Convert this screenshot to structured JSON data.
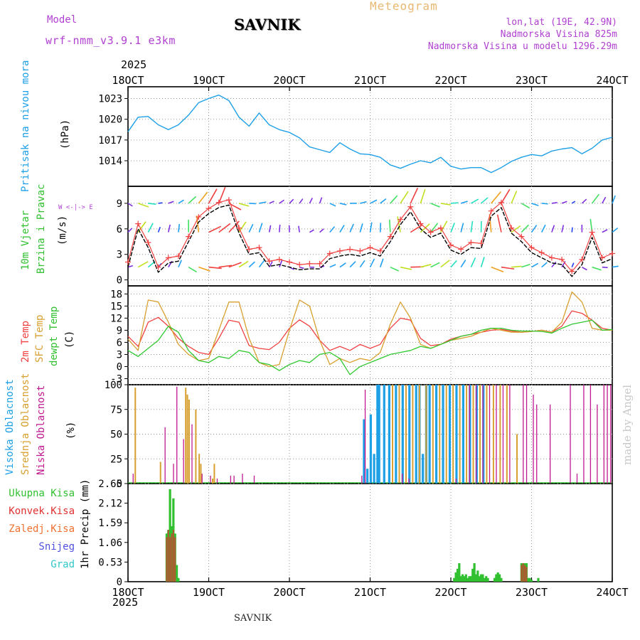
{
  "header": {
    "model_label": "Model",
    "model_value": "wrf-nmm_v3.9.1 e3km",
    "station": "SAVNIK",
    "meteogram_title": "Meteogram",
    "lonlat": "lon,lat (19E, 42.9N)",
    "altitude": "Nadmorska Visina 825m",
    "model_altitude": "Nadmorska Visina u modelu 1296.29m",
    "footer_station": "SAVNIK",
    "credit": "made by Angel"
  },
  "time_axis": {
    "year": "2025",
    "labels": [
      "18OCT",
      "19OCT",
      "20OCT",
      "21OCT",
      "22OCT",
      "23OCT",
      "24OCT"
    ]
  },
  "colors": {
    "pressure": "#1ea0e6",
    "temp2m": "#f04040",
    "sfc": "#d8a030",
    "dewpt": "#30c830",
    "high_cloud": "#1ea0e6",
    "mid_cloud": "#d8a030",
    "low_cloud": "#c01890",
    "rain": "#30c030",
    "conv": "#e03030",
    "snow": "#5050e0",
    "grad": "#30c8c8",
    "credit": "#c8c8c8"
  },
  "panels": {
    "pressure": {
      "label": "Pritisak na nivou mora",
      "unit": "(hPa)"
    },
    "wind": {
      "label1": "10m Vjetar",
      "label2": "Brzina i Pravac",
      "unit": "(m/s)",
      "compass": "W <-|-> E"
    },
    "temp": {
      "label1": "2m Temp",
      "label2": "SFC Temp",
      "label3": "dewpt Temp",
      "unit": "(C)"
    },
    "cloud": {
      "label1": "Visoka Oblacnost",
      "label2": "Srednja Oblacnost",
      "label3": "Niska Oblacnost",
      "unit": "(%)"
    },
    "precip": {
      "labels": [
        "Ukupna Kisa",
        "Konvek.Kisa",
        "Zaledj.Kisa",
        "Snijeg",
        "Grad"
      ],
      "unit": "1hr Precip (mm)"
    }
  },
  "chart_data": [
    {
      "type": "line",
      "title": "Pritisak na nivou mora",
      "ylabel": "(hPa)",
      "ylim": [
        1010.3,
        1024.7
      ],
      "yticks": [
        "1014",
        "1017",
        "1020",
        "1023"
      ],
      "x_hours": [
        0,
        3,
        6,
        9,
        12,
        15,
        18,
        21,
        24,
        27,
        30,
        33,
        36,
        39,
        42,
        45,
        48,
        51,
        54,
        57,
        60,
        63,
        66,
        69,
        72,
        75,
        78,
        81,
        84,
        87,
        90,
        93,
        96,
        99,
        102,
        105,
        108,
        111,
        114,
        117,
        120,
        123,
        126,
        129,
        132,
        135,
        138,
        141,
        144
      ],
      "series": [
        {
          "name": "Pritisak",
          "values": [
            1018.2,
            1020.3,
            1020.4,
            1019.2,
            1018.5,
            1019.2,
            1020.6,
            1022.4,
            1023.0,
            1023.5,
            1022.7,
            1020.3,
            1019.0,
            1020.9,
            1019.2,
            1018.5,
            1018.1,
            1017.3,
            1016.0,
            1015.6,
            1015.2,
            1016.6,
            1015.7,
            1015.0,
            1014.9,
            1014.5,
            1013.4,
            1012.9,
            1013.5,
            1014.0,
            1013.7,
            1014.5,
            1013.2,
            1012.8,
            1013.0,
            1013.0,
            1012.3,
            1013.0,
            1013.9,
            1014.5,
            1014.9,
            1014.7,
            1015.4,
            1015.7,
            1015.9,
            1015.0,
            1015.8,
            1017.0,
            1017.4
          ]
        }
      ]
    },
    {
      "type": "line",
      "title": "10m Vjetar Brzina i Pravac",
      "ylabel": "(m/s)",
      "ylim": [
        -0.7,
        11
      ],
      "yticks": [
        "0",
        "3",
        "6",
        "9"
      ],
      "x_hours": [
        0,
        3,
        6,
        9,
        12,
        15,
        18,
        21,
        24,
        27,
        30,
        33,
        36,
        39,
        42,
        45,
        48,
        51,
        54,
        57,
        60,
        63,
        66,
        69,
        72,
        75,
        78,
        81,
        84,
        87,
        90,
        93,
        96,
        99,
        102,
        105,
        108,
        111,
        114,
        117,
        120,
        123,
        126,
        129,
        132,
        135,
        138,
        141,
        144
      ],
      "series": [
        {
          "name": "Brzina vjetra",
          "values": [
            1.5,
            6.0,
            3.8,
            0.9,
            2.0,
            2.2,
            4.5,
            6.8,
            7.8,
            8.5,
            8.8,
            5.5,
            3.0,
            3.2,
            1.6,
            1.8,
            1.5,
            1.2,
            1.3,
            1.3,
            2.5,
            2.8,
            3.0,
            2.8,
            3.2,
            2.8,
            4.5,
            6.5,
            8.0,
            6.0,
            5.0,
            5.5,
            3.5,
            3.0,
            3.8,
            3.7,
            7.5,
            8.5,
            5.5,
            4.5,
            3.2,
            2.6,
            2.0,
            1.8,
            0.4,
            1.8,
            5.0,
            2.0,
            2.5
          ]
        }
      ]
    },
    {
      "type": "line",
      "title": "Temperature",
      "ylabel": "(C)",
      "ylim": [
        -4.5,
        20
      ],
      "yticks": [
        "-3",
        "0",
        "3",
        "6",
        "9",
        "12",
        "15",
        "18"
      ],
      "x_hours": [
        0,
        3,
        6,
        9,
        12,
        15,
        18,
        21,
        24,
        27,
        30,
        33,
        36,
        39,
        42,
        45,
        48,
        51,
        54,
        57,
        60,
        63,
        66,
        69,
        72,
        75,
        78,
        81,
        84,
        87,
        90,
        93,
        96,
        99,
        102,
        105,
        108,
        111,
        114,
        117,
        120,
        123,
        126,
        129,
        132,
        135,
        138,
        141,
        144
      ],
      "series": [
        {
          "name": "2m Temp",
          "values": [
            7.5,
            5.0,
            11.0,
            12.2,
            10.0,
            7.0,
            5.0,
            3.5,
            3.0,
            7.0,
            11.5,
            11.0,
            5.2,
            4.5,
            4.2,
            6.0,
            9.5,
            11.6,
            10.0,
            6.5,
            4.0,
            5.0,
            4.0,
            5.5,
            4.5,
            5.5,
            9.5,
            12.0,
            11.5,
            7.0,
            5.2,
            5.5,
            6.8,
            7.5,
            8.0,
            8.5,
            9.0,
            9.2,
            8.8,
            8.5,
            8.7,
            9.0,
            8.5,
            10.0,
            13.8,
            13.2,
            11.5,
            9.5,
            9.0
          ]
        },
        {
          "name": "SFC Temp",
          "values": [
            6.8,
            4.0,
            16.5,
            16.0,
            11.0,
            5.5,
            3.0,
            1.5,
            2.0,
            9.0,
            16.0,
            16.0,
            7.0,
            1.0,
            0.0,
            0.5,
            9.0,
            16.5,
            15.0,
            6.5,
            0.5,
            2.0,
            1.0,
            2.0,
            1.5,
            3.5,
            10.5,
            16.0,
            12.0,
            5.5,
            4.5,
            5.5,
            6.5,
            7.0,
            7.5,
            8.5,
            9.5,
            9.0,
            8.5,
            8.5,
            8.7,
            9.0,
            8.5,
            11.0,
            18.5,
            16.0,
            9.5,
            9.0,
            9.0
          ]
        },
        {
          "name": "dewpt Temp",
          "values": [
            4.0,
            2.5,
            4.5,
            6.5,
            10.0,
            8.5,
            4.0,
            1.5,
            1.0,
            2.5,
            2.0,
            4.0,
            3.5,
            1.0,
            0.5,
            -1.0,
            0.5,
            1.5,
            1.0,
            3.0,
            3.5,
            2.0,
            -2.0,
            0.0,
            1.0,
            2.0,
            3.0,
            3.5,
            4.0,
            5.0,
            4.5,
            5.5,
            6.5,
            7.5,
            8.0,
            9.0,
            9.5,
            9.5,
            9.0,
            8.8,
            8.8,
            8.7,
            8.3,
            9.5,
            10.5,
            11.0,
            11.5,
            9.0,
            9.2
          ]
        }
      ]
    },
    {
      "type": "bar",
      "title": "Oblacnost",
      "ylabel": "(%)",
      "ylim": [
        0,
        100
      ],
      "yticks": [
        "0",
        "25",
        "50",
        "75",
        "100"
      ],
      "series": [
        {
          "name": "Visoka Oblacnost",
          "x_hours": [
            70.5,
            71.5,
            72.5,
            73.5,
            74.5,
            75,
            76.5,
            78,
            80,
            82,
            84,
            86,
            87,
            88,
            89,
            90,
            92,
            94,
            96,
            98,
            100,
            102,
            104,
            106
          ],
          "values": [
            65,
            15,
            70,
            30,
            100,
            100,
            100,
            100,
            100,
            100,
            100,
            100,
            100,
            30,
            100,
            100,
            100,
            100,
            100,
            100,
            100,
            100,
            100,
            100
          ]
        },
        {
          "name": "Srednja Oblacnost",
          "x_hours": [
            2,
            9.5,
            17,
            17.5,
            18,
            20,
            21,
            21.5,
            25,
            25.5,
            78.5,
            80.5,
            82.5,
            84.5,
            86.5,
            88.5,
            90.5,
            92.5,
            94.5,
            96.5,
            98.5,
            100.5,
            102.5,
            104.5,
            106.5,
            108.5,
            110.5,
            112.5,
            115.5
          ],
          "values": [
            97,
            22,
            97,
            90,
            85,
            75,
            30,
            20,
            5,
            20,
            100,
            100,
            100,
            100,
            100,
            100,
            100,
            100,
            100,
            100,
            100,
            100,
            100,
            100,
            100,
            100,
            100,
            100,
            50
          ]
        },
        {
          "name": "Niska Oblacnost",
          "x_hours": [
            1,
            10.5,
            13,
            14,
            16,
            18.5,
            21.5,
            24,
            26,
            30,
            31,
            33.5,
            37,
            69,
            70,
            81,
            83,
            97,
            101,
            103,
            105,
            107,
            109,
            111,
            113,
            117,
            118,
            120,
            121,
            125,
            131,
            133,
            135,
            137,
            139,
            141,
            142,
            143
          ],
          "values": [
            10,
            57,
            20,
            98,
            45,
            60,
            10,
            8,
            5,
            8,
            8,
            10,
            8,
            8,
            95,
            10,
            5,
            5,
            100,
            100,
            100,
            100,
            100,
            100,
            100,
            100,
            100,
            90,
            80,
            80,
            100,
            10,
            100,
            100,
            80,
            100,
            100,
            100
          ]
        }
      ]
    },
    {
      "type": "bar",
      "title": "1hr Precip",
      "ylabel": "(mm)",
      "ylim": [
        0,
        2.65
      ],
      "yticks": [
        "0",
        "0.53",
        "1.06",
        "1.59",
        "2.12",
        "2.65"
      ],
      "series": [
        {
          "name": "Ukupna Kisa",
          "x_hours": [
            11.5,
            12,
            12.5,
            13,
            13.5,
            14,
            14.5,
            15,
            97,
            97.5,
            98,
            98.5,
            99,
            99.5,
            100,
            100.5,
            101,
            101.5,
            102,
            102.5,
            103,
            103.5,
            104,
            104.5,
            105,
            105.5,
            106,
            106.5,
            107,
            109,
            109.5,
            110,
            110.5,
            111,
            117,
            117.5,
            118,
            118.5,
            119,
            119.5,
            120,
            122
          ],
          "values": [
            1.3,
            1.4,
            2.5,
            1.5,
            2.25,
            1.3,
            0.45,
            0.1,
            0.1,
            0.25,
            0.35,
            0.5,
            0.15,
            0.2,
            0.15,
            0.2,
            0.1,
            0.15,
            0.15,
            0.35,
            0.5,
            0.2,
            0.3,
            0.15,
            0.2,
            0.2,
            0.1,
            0.15,
            0.1,
            0.1,
            0.2,
            0.25,
            0.2,
            0.1,
            0.5,
            0.5,
            0.5,
            0.5,
            0.1,
            0.1,
            0.05,
            0.1
          ]
        },
        {
          "name": "Konvek.Kisa",
          "x_hours": [
            11.5,
            12,
            12.5,
            13,
            13.5,
            14,
            117,
            117.5,
            118,
            118.5
          ],
          "values": [
            1.2,
            1.4,
            1.2,
            1.3,
            1.4,
            1.2,
            0.45,
            0.5,
            0.45,
            0.4
          ]
        },
        {
          "name": "Zaledj.Kisa",
          "x_hours": [],
          "values": []
        },
        {
          "name": "Snijeg",
          "x_hours": [],
          "values": []
        },
        {
          "name": "Grad",
          "x_hours": [],
          "values": []
        }
      ]
    }
  ]
}
